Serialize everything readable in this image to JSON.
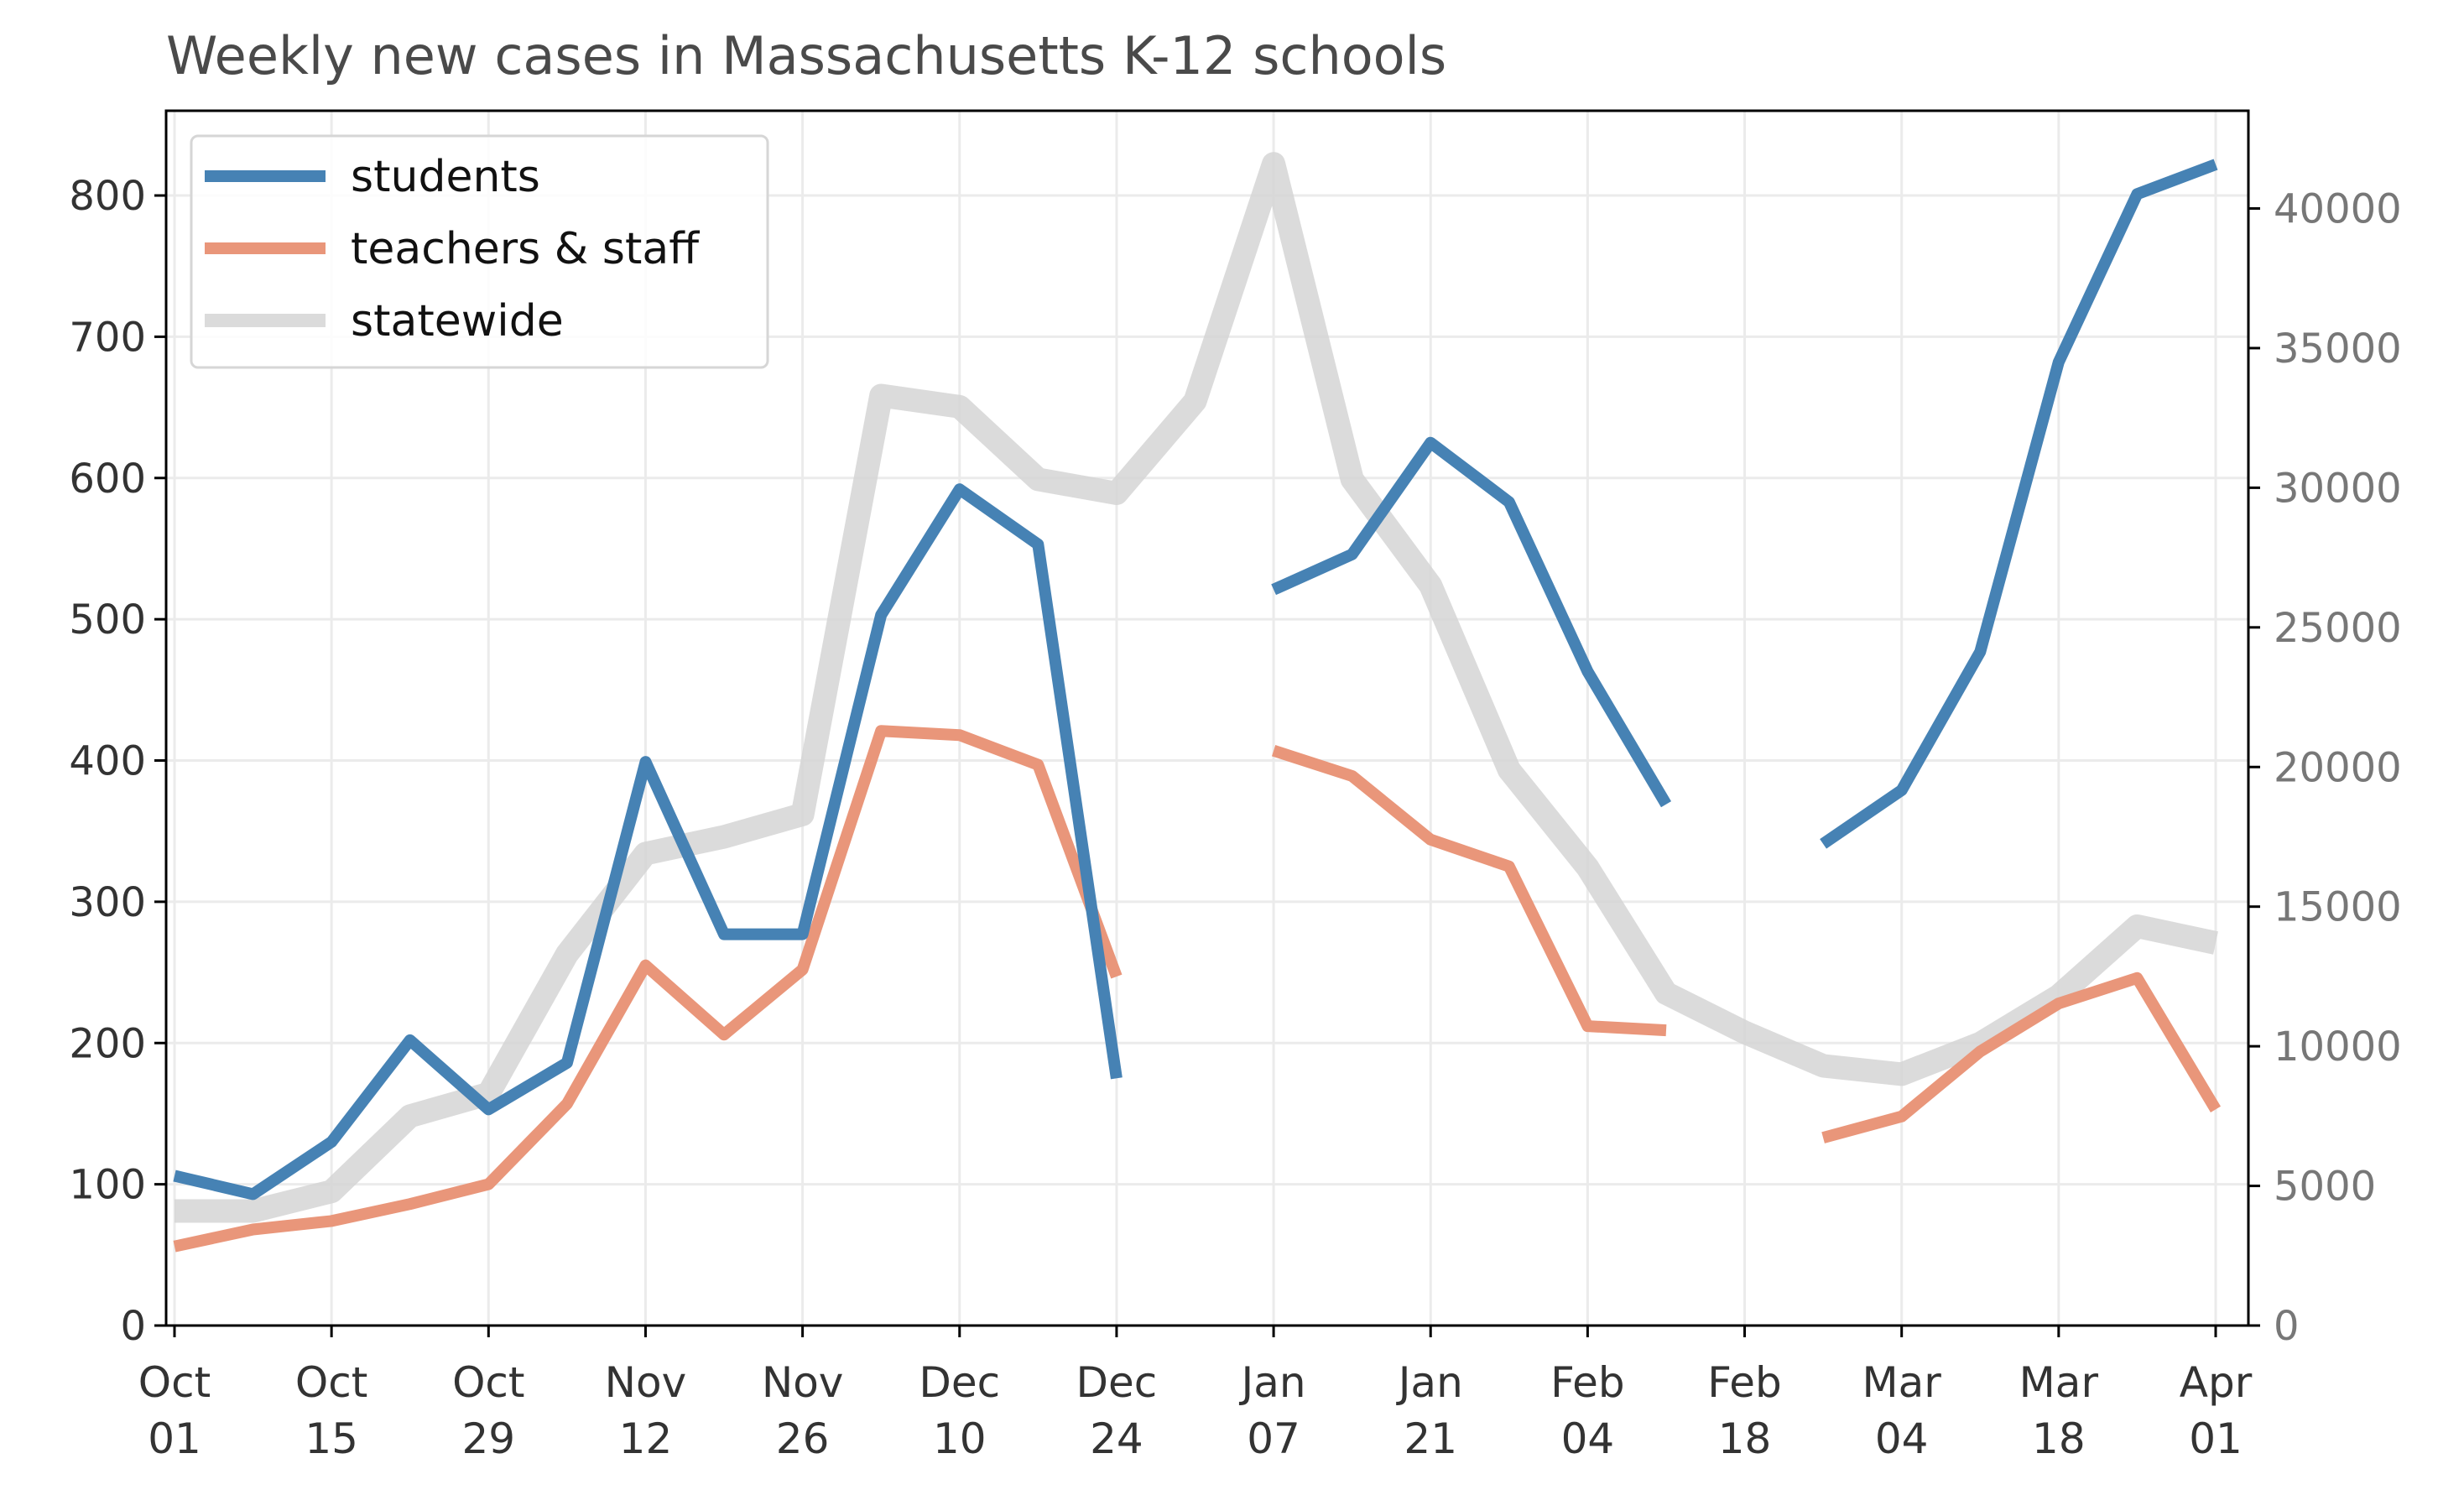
{
  "chart_data": {
    "type": "line",
    "title": "Weekly new cases in Massachusetts K-12 schools",
    "xlabel": "",
    "ylabel": "",
    "y2label": "",
    "x": [
      "2020-10-01",
      "2020-10-08",
      "2020-10-15",
      "2020-10-22",
      "2020-10-29",
      "2020-11-05",
      "2020-11-12",
      "2020-11-19",
      "2020-11-26",
      "2020-12-03",
      "2020-12-10",
      "2020-12-17",
      "2020-12-24",
      "2020-12-31",
      "2021-01-07",
      "2021-01-14",
      "2021-01-21",
      "2021-01-28",
      "2021-02-04",
      "2021-02-11",
      "2021-02-18",
      "2021-02-25",
      "2021-03-04",
      "2021-03-11",
      "2021-03-18",
      "2021-03-25",
      "2021-04-01"
    ],
    "x_ticks": [
      {
        "date": "2020-10-01",
        "month": "Oct",
        "day": "01"
      },
      {
        "date": "2020-10-15",
        "month": "Oct",
        "day": "15"
      },
      {
        "date": "2020-10-29",
        "month": "Oct",
        "day": "29"
      },
      {
        "date": "2020-11-12",
        "month": "Nov",
        "day": "12"
      },
      {
        "date": "2020-11-26",
        "month": "Nov",
        "day": "26"
      },
      {
        "date": "2020-12-10",
        "month": "Dec",
        "day": "10"
      },
      {
        "date": "2020-12-24",
        "month": "Dec",
        "day": "24"
      },
      {
        "date": "2021-01-07",
        "month": "Jan",
        "day": "07"
      },
      {
        "date": "2021-01-21",
        "month": "Jan",
        "day": "21"
      },
      {
        "date": "2021-02-04",
        "month": "Feb",
        "day": "04"
      },
      {
        "date": "2021-02-18",
        "month": "Feb",
        "day": "18"
      },
      {
        "date": "2021-03-04",
        "month": "Mar",
        "day": "04"
      },
      {
        "date": "2021-03-18",
        "month": "Mar",
        "day": "18"
      },
      {
        "date": "2021-04-01",
        "month": "Apr",
        "day": "01"
      }
    ],
    "ylim": [
      0,
      860
    ],
    "y_ticks": [
      "0",
      "100",
      "200",
      "300",
      "400",
      "500",
      "600",
      "700",
      "800"
    ],
    "y2lim": [
      0,
      43500
    ],
    "y2_ticks": [
      "0",
      "5000",
      "10000",
      "15000",
      "20000",
      "25000",
      "30000",
      "35000",
      "40000"
    ],
    "grid": true,
    "legend_position": "top-left",
    "series": [
      {
        "name": "students",
        "axis": "left",
        "color": "#4682b4",
        "values": [
          106,
          93,
          130,
          202,
          153,
          186,
          399,
          277,
          277,
          503,
          592,
          553,
          175,
          null,
          521,
          546,
          625,
          583,
          463,
          369,
          null,
          341,
          379,
          477,
          682,
          801,
          822
        ]
      },
      {
        "name": "teachers & staff",
        "axis": "left",
        "color": "#e9967a",
        "values": [
          56,
          68,
          74,
          86,
          100,
          157,
          255,
          206,
          252,
          421,
          418,
          397,
          247,
          null,
          407,
          389,
          344,
          325,
          212,
          209,
          null,
          133,
          148,
          194,
          228,
          246,
          153
        ]
      },
      {
        "name": "statewide",
        "axis": "right",
        "color": "#d3d3d3",
        "values": [
          4100,
          4100,
          4800,
          7500,
          8300,
          13300,
          16900,
          17500,
          18300,
          33300,
          32900,
          30300,
          29800,
          33100,
          41600,
          30300,
          26500,
          19900,
          16400,
          11900,
          10500,
          9300,
          9000,
          10100,
          11800,
          14300,
          13700
        ]
      }
    ]
  }
}
